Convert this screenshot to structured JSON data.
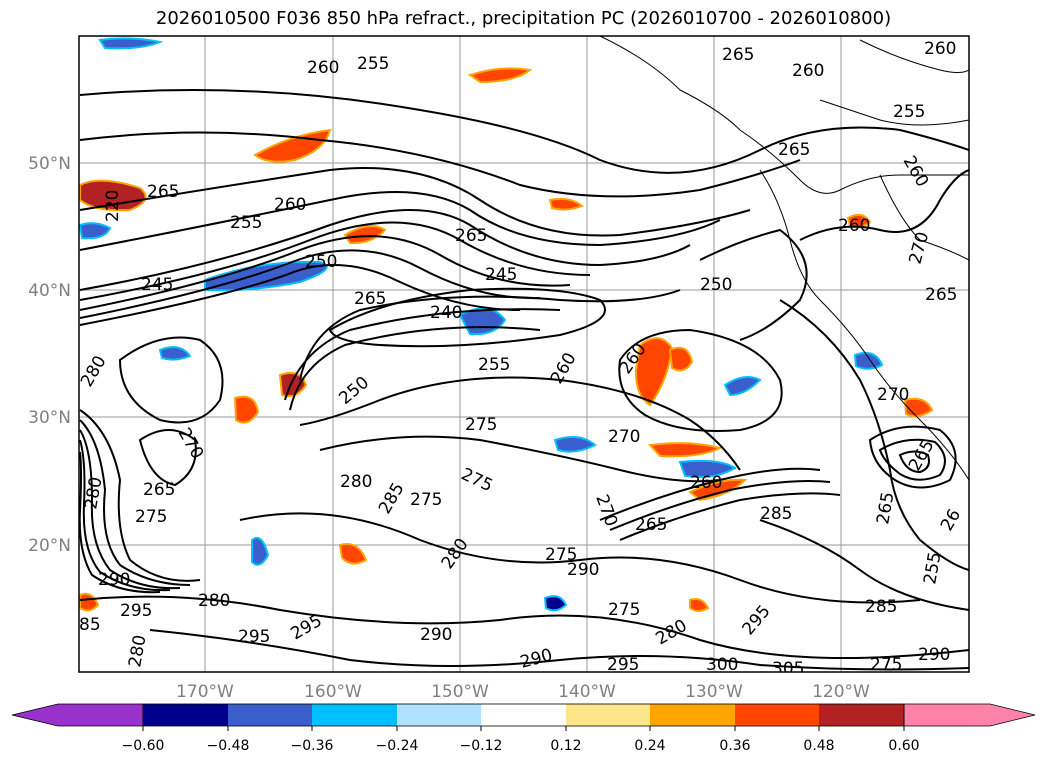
{
  "title": "2026010500 F036 850 hPa refract., precipitation PC (2026010700 - 2026010800)",
  "map": {
    "lat_labels": [
      "50°N",
      "40°N",
      "30°N",
      "20°N"
    ],
    "lon_labels": [
      "170°W",
      "160°W",
      "150°W",
      "140°W",
      "130°W",
      "120°W"
    ],
    "contour_labels": [
      {
        "text": "260"
      },
      {
        "text": "255"
      },
      {
        "text": "265"
      },
      {
        "text": "260"
      },
      {
        "text": "260"
      },
      {
        "text": "255"
      },
      {
        "text": "260"
      },
      {
        "text": "265"
      },
      {
        "text": "220"
      },
      {
        "text": "265"
      },
      {
        "text": "255"
      },
      {
        "text": "260"
      },
      {
        "text": "265"
      },
      {
        "text": "250"
      },
      {
        "text": "245"
      },
      {
        "text": "245"
      },
      {
        "text": "265"
      },
      {
        "text": "240"
      },
      {
        "text": "250"
      },
      {
        "text": "255"
      },
      {
        "text": "260"
      },
      {
        "text": "260"
      },
      {
        "text": "260"
      },
      {
        "text": "270"
      },
      {
        "text": "265"
      },
      {
        "text": "280"
      },
      {
        "text": "270"
      },
      {
        "text": "265"
      },
      {
        "text": "275"
      },
      {
        "text": "250"
      },
      {
        "text": "275"
      },
      {
        "text": "270"
      },
      {
        "text": "275"
      },
      {
        "text": "280"
      },
      {
        "text": "285"
      },
      {
        "text": "275"
      },
      {
        "text": "270"
      },
      {
        "text": "265"
      },
      {
        "text": "260"
      },
      {
        "text": "285"
      },
      {
        "text": "280"
      },
      {
        "text": "275"
      },
      {
        "text": "290"
      },
      {
        "text": "290"
      },
      {
        "text": "295"
      },
      {
        "text": "280"
      },
      {
        "text": "295"
      },
      {
        "text": "295"
      },
      {
        "text": "290"
      },
      {
        "text": "275"
      },
      {
        "text": "280"
      },
      {
        "text": "295"
      },
      {
        "text": "290"
      },
      {
        "text": "295"
      },
      {
        "text": "300"
      },
      {
        "text": "305"
      },
      {
        "text": "280"
      },
      {
        "text": "290"
      },
      {
        "text": "285"
      },
      {
        "text": "275"
      },
      {
        "text": "265"
      },
      {
        "text": "255"
      },
      {
        "text": "26"
      },
      {
        "text": "270"
      },
      {
        "text": "265"
      },
      {
        "text": "85"
      },
      {
        "text": "280"
      }
    ]
  },
  "colorbar": {
    "ticks": [
      "−0.60",
      "−0.48",
      "−0.36",
      "−0.24",
      "−0.12",
      "0.12",
      "0.24",
      "0.36",
      "0.48",
      "0.60"
    ],
    "colors": [
      "#9932cc",
      "#00008b",
      "#3a5fcd",
      "#00bfff",
      "#b0e2ff",
      "#ffffff",
      "#fde68a",
      "#ffa500",
      "#ff4500",
      "#b22222",
      "#ff82ab"
    ]
  }
}
